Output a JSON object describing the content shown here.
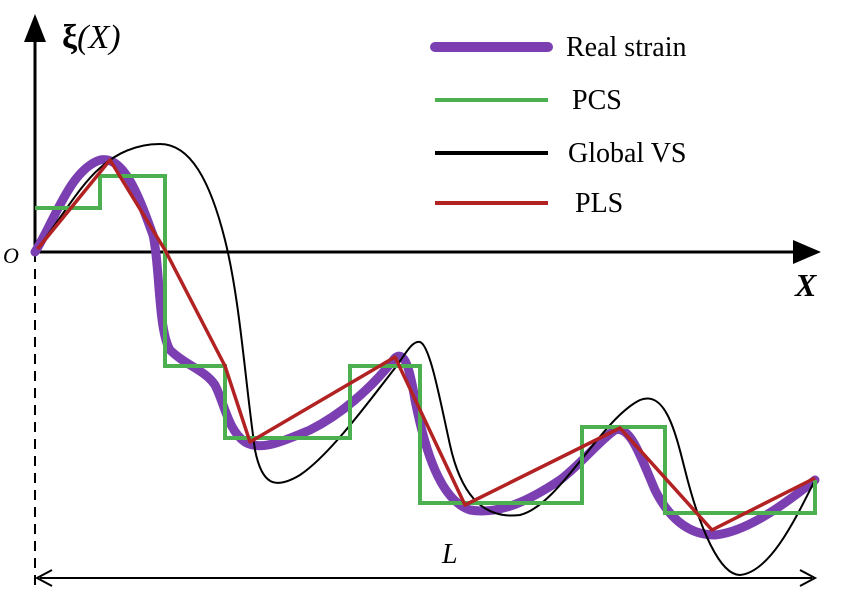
{
  "axes": {
    "y_label_symbol": "ξ",
    "y_label_rest": "(X)",
    "x_label": "X",
    "origin_label": "O",
    "length_label": "L"
  },
  "legend": {
    "items": [
      {
        "key": "real",
        "label": "Real strain",
        "color": "#7030A0"
      },
      {
        "key": "pcs",
        "label": "PCS",
        "color": "#4CAF50"
      },
      {
        "key": "global",
        "label": "Global VS",
        "color": "#000000"
      },
      {
        "key": "pls",
        "label": "PLS",
        "color": "#B22222"
      }
    ]
  }
}
